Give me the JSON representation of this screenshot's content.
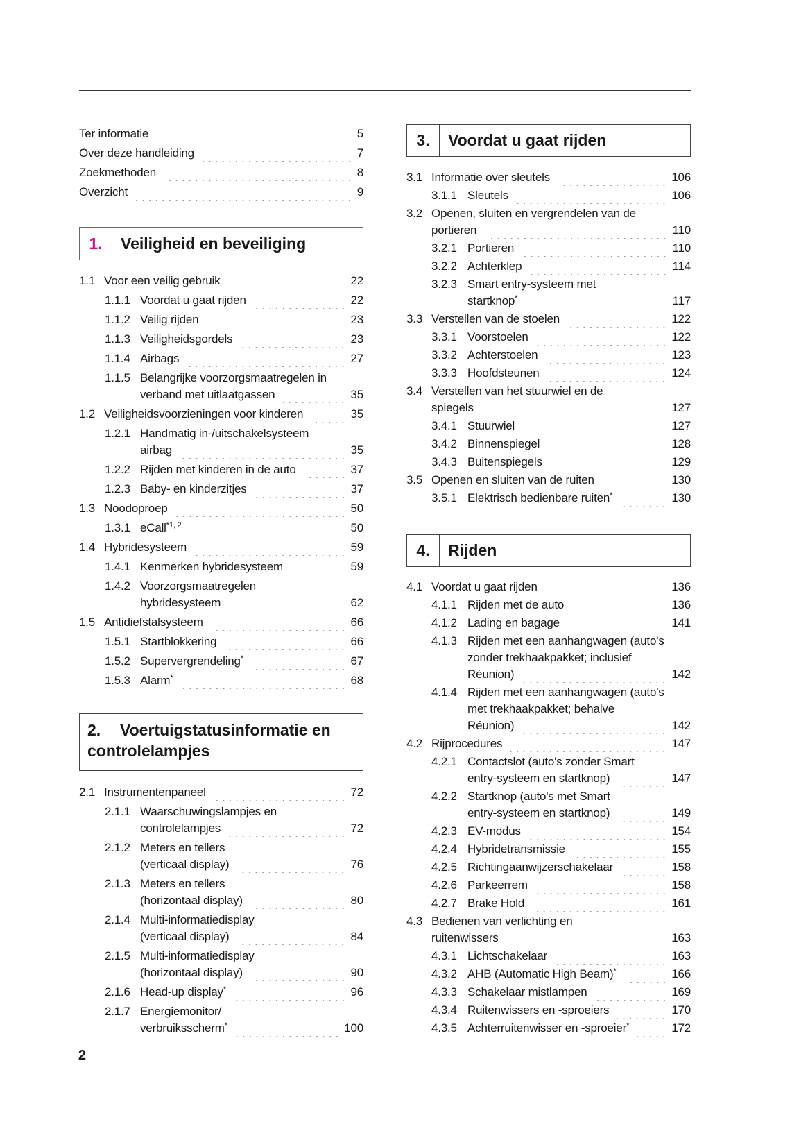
{
  "intro": [
    {
      "text": "Ter informatie",
      "page": "5"
    },
    {
      "text": "Over deze handleiding",
      "page": "7"
    },
    {
      "text": "Zoekmethoden",
      "page": "8"
    },
    {
      "text": "Overzicht",
      "page": "9"
    }
  ],
  "accent_color": "#c8197f",
  "sections": [
    {
      "num": "1.",
      "title": "Veiligheid en beveiliging",
      "entries": [
        {
          "level": 0,
          "num": "1.1",
          "lines": [
            "Voor een veilig gebruik"
          ],
          "page": "22"
        },
        {
          "level": 1,
          "num": "1.1.1",
          "lines": [
            "Voordat u gaat rijden"
          ],
          "page": "22"
        },
        {
          "level": 1,
          "num": "1.1.2",
          "lines": [
            "Veilig rijden"
          ],
          "page": "23"
        },
        {
          "level": 1,
          "num": "1.1.3",
          "lines": [
            "Veiligheidsgordels"
          ],
          "page": "23"
        },
        {
          "level": 1,
          "num": "1.1.4",
          "lines": [
            "Airbags"
          ],
          "page": "27"
        },
        {
          "level": 1,
          "num": "1.1.5",
          "lines": [
            "Belangrijke voorzorgsmaatregelen in",
            "verband met uitlaatgassen"
          ],
          "page": "35"
        },
        {
          "level": 0,
          "num": "1.2",
          "lines": [
            "Veiligheidsvoorzieningen voor kinderen"
          ],
          "page": "35"
        },
        {
          "level": 1,
          "num": "1.2.1",
          "lines": [
            "Handmatig in-/uitschakelsysteem",
            "airbag"
          ],
          "page": "35"
        },
        {
          "level": 1,
          "num": "1.2.2",
          "lines": [
            "Rijden met kinderen in de auto"
          ],
          "page": "37"
        },
        {
          "level": 1,
          "num": "1.2.3",
          "lines": [
            "Baby- en kinderzitjes"
          ],
          "page": "37"
        },
        {
          "level": 0,
          "num": "1.3",
          "lines": [
            "Noodoproep"
          ],
          "page": "50"
        },
        {
          "level": 1,
          "num": "1.3.1",
          "lines": [
            "eCall"
          ],
          "sup": "*1, 2",
          "page": "50"
        },
        {
          "level": 0,
          "num": "1.4",
          "lines": [
            "Hybridesysteem"
          ],
          "page": "59"
        },
        {
          "level": 1,
          "num": "1.4.1",
          "lines": [
            "Kenmerken hybridesysteem"
          ],
          "page": "59"
        },
        {
          "level": 1,
          "num": "1.4.2",
          "lines": [
            "Voorzorgsmaatregelen",
            "hybridesysteem"
          ],
          "page": "62"
        },
        {
          "level": 0,
          "num": "1.5",
          "lines": [
            "Antidiefstalsysteem"
          ],
          "page": "66"
        },
        {
          "level": 1,
          "num": "1.5.1",
          "lines": [
            "Startblokkering"
          ],
          "page": "66"
        },
        {
          "level": 1,
          "num": "1.5.2",
          "lines": [
            "Supervergrendeling"
          ],
          "sup": "*",
          "page": "67"
        },
        {
          "level": 1,
          "num": "1.5.3",
          "lines": [
            "Alarm"
          ],
          "sup": "*",
          "page": "68"
        }
      ]
    },
    {
      "num": "2.",
      "title_line1": "Voertuigstatusinformatie en",
      "title_line2": "controlelampjes",
      "entries": [
        {
          "level": 0,
          "num": "2.1",
          "lines": [
            "Instrumentenpaneel"
          ],
          "page": "72"
        },
        {
          "level": 1,
          "num": "2.1.1",
          "lines": [
            "Waarschuwingslampjes en",
            "controlelampjes"
          ],
          "page": "72"
        },
        {
          "level": 1,
          "num": "2.1.2",
          "lines": [
            "Meters en tellers",
            "(verticaal display)"
          ],
          "page": "76"
        },
        {
          "level": 1,
          "num": "2.1.3",
          "lines": [
            "Meters en tellers",
            "(horizontaal display)"
          ],
          "page": "80"
        },
        {
          "level": 1,
          "num": "2.1.4",
          "lines": [
            "Multi-informatiedisplay",
            "(verticaal display)"
          ],
          "page": "84"
        },
        {
          "level": 1,
          "num": "2.1.5",
          "lines": [
            "Multi-informatiedisplay",
            "(horizontaal display)"
          ],
          "page": "90"
        },
        {
          "level": 1,
          "num": "2.1.6",
          "lines": [
            "Head-up display"
          ],
          "sup": "*",
          "page": "96"
        },
        {
          "level": 1,
          "num": "2.1.7",
          "lines": [
            "Energiemonitor/",
            "verbruiksscherm"
          ],
          "sup": "*",
          "page": "100"
        }
      ]
    },
    {
      "num": "3.",
      "title": "Voordat u gaat rijden",
      "entries": [
        {
          "level": 0,
          "num": "3.1",
          "lines": [
            "Informatie over sleutels"
          ],
          "page": "106"
        },
        {
          "level": 1,
          "num": "3.1.1",
          "lines": [
            "Sleutels"
          ],
          "page": "106"
        },
        {
          "level": 0,
          "num": "3.2",
          "lines": [
            "Openen, sluiten en vergrendelen van de",
            "portieren"
          ],
          "page": "110"
        },
        {
          "level": 1,
          "num": "3.2.1",
          "lines": [
            "Portieren"
          ],
          "page": "110"
        },
        {
          "level": 1,
          "num": "3.2.2",
          "lines": [
            "Achterklep"
          ],
          "page": "114"
        },
        {
          "level": 1,
          "num": "3.2.3",
          "lines": [
            "Smart entry-systeem met",
            "startknop"
          ],
          "sup": "*",
          "page": "117"
        },
        {
          "level": 0,
          "num": "3.3",
          "lines": [
            "Verstellen van de stoelen"
          ],
          "page": "122"
        },
        {
          "level": 1,
          "num": "3.3.1",
          "lines": [
            "Voorstoelen"
          ],
          "page": "122"
        },
        {
          "level": 1,
          "num": "3.3.2",
          "lines": [
            "Achterstoelen"
          ],
          "page": "123"
        },
        {
          "level": 1,
          "num": "3.3.3",
          "lines": [
            "Hoofdsteunen"
          ],
          "page": "124"
        },
        {
          "level": 0,
          "num": "3.4",
          "lines": [
            "Verstellen van het stuurwiel en de",
            "spiegels"
          ],
          "page": "127"
        },
        {
          "level": 1,
          "num": "3.4.1",
          "lines": [
            "Stuurwiel"
          ],
          "page": "127"
        },
        {
          "level": 1,
          "num": "3.4.2",
          "lines": [
            "Binnenspiegel"
          ],
          "page": "128"
        },
        {
          "level": 1,
          "num": "3.4.3",
          "lines": [
            "Buitenspiegels"
          ],
          "page": "129"
        },
        {
          "level": 0,
          "num": "3.5",
          "lines": [
            "Openen en sluiten van de ruiten"
          ],
          "page": "130"
        },
        {
          "level": 1,
          "num": "3.5.1",
          "lines": [
            "Elektrisch bedienbare ruiten"
          ],
          "sup": "*",
          "page": "130"
        }
      ]
    },
    {
      "num": "4.",
      "title": "Rijden",
      "entries": [
        {
          "level": 0,
          "num": "4.1",
          "lines": [
            "Voordat u gaat rijden"
          ],
          "page": "136"
        },
        {
          "level": 1,
          "num": "4.1.1",
          "lines": [
            "Rijden met de auto"
          ],
          "page": "136"
        },
        {
          "level": 1,
          "num": "4.1.2",
          "lines": [
            "Lading en bagage"
          ],
          "page": "141"
        },
        {
          "level": 1,
          "num": "4.1.3",
          "lines": [
            "Rijden met een aanhangwagen (auto's",
            "zonder trekhaakpakket; inclusief",
            "Réunion)"
          ],
          "page": "142"
        },
        {
          "level": 1,
          "num": "4.1.4",
          "lines": [
            "Rijden met een aanhangwagen (auto's",
            "met trekhaakpakket; behalve",
            "Réunion)"
          ],
          "page": "142"
        },
        {
          "level": 0,
          "num": "4.2",
          "lines": [
            "Rijprocedures"
          ],
          "page": "147"
        },
        {
          "level": 1,
          "num": "4.2.1",
          "lines": [
            "Contactslot (auto's zonder Smart",
            "entry-systeem en startknop)"
          ],
          "page": "147"
        },
        {
          "level": 1,
          "num": "4.2.2",
          "lines": [
            "Startknop (auto's met Smart",
            "entry-systeem en startknop)"
          ],
          "page": "149"
        },
        {
          "level": 1,
          "num": "4.2.3",
          "lines": [
            "EV-modus"
          ],
          "page": "154"
        },
        {
          "level": 1,
          "num": "4.2.4",
          "lines": [
            "Hybridetransmissie"
          ],
          "page": "155"
        },
        {
          "level": 1,
          "num": "4.2.5",
          "lines": [
            "Richtingaanwijzerschakelaar"
          ],
          "page": "158"
        },
        {
          "level": 1,
          "num": "4.2.6",
          "lines": [
            "Parkeerrem"
          ],
          "page": "158"
        },
        {
          "level": 1,
          "num": "4.2.7",
          "lines": [
            "Brake Hold"
          ],
          "page": "161"
        },
        {
          "level": 0,
          "num": "4.3",
          "lines": [
            "Bedienen van verlichting en",
            "ruitenwissers"
          ],
          "page": "163"
        },
        {
          "level": 1,
          "num": "4.3.1",
          "lines": [
            "Lichtschakelaar"
          ],
          "page": "163"
        },
        {
          "level": 1,
          "num": "4.3.2",
          "lines": [
            "AHB (Automatic High Beam)"
          ],
          "sup": "*",
          "page": "166"
        },
        {
          "level": 1,
          "num": "4.3.3",
          "lines": [
            "Schakelaar mistlampen"
          ],
          "page": "169"
        },
        {
          "level": 1,
          "num": "4.3.4",
          "lines": [
            "Ruitenwissers en -sproeiers"
          ],
          "page": "170"
        },
        {
          "level": 1,
          "num": "4.3.5",
          "lines": [
            "Achterruitenwisser en -sproeier"
          ],
          "sup": "*",
          "page": "172"
        }
      ]
    }
  ],
  "page_number": "2"
}
